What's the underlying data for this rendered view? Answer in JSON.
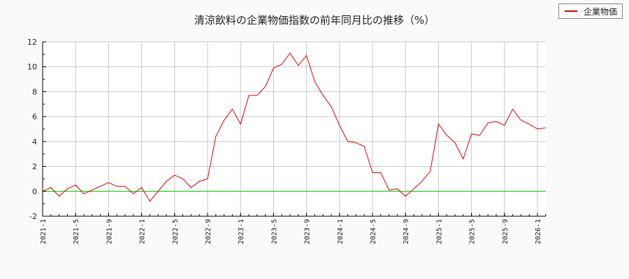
{
  "title": "清涼飲料の企業物価指数の前年同月比の推移（%）",
  "legend": {
    "label": "企業物価",
    "color": "#dd0000"
  },
  "colors": {
    "series": "#dd0000",
    "zero_line": "#00cc00",
    "grid": "#c8c8c8",
    "axis": "#000000",
    "plot_bg": "#ffffff",
    "page_bg": "#fafafa"
  },
  "chart_data": {
    "type": "line",
    "title": "清涼飲料の企業物価指数の前年同月比の推移（%）",
    "xlabel": "",
    "ylabel": "",
    "ylim": [
      -2,
      12
    ],
    "yticks": [
      -2,
      0,
      2,
      4,
      6,
      8,
      10,
      12
    ],
    "xtick_labels": [
      "2021-1",
      "2021-5",
      "2021-9",
      "2022-1",
      "2022-5",
      "2022-9",
      "2023-1",
      "2023-5",
      "2023-9",
      "2024-1",
      "2024-5",
      "2024-9",
      "2025-1",
      "2025-5",
      "2025-9",
      "2026-1"
    ],
    "grid": true,
    "legend_position": "top-right",
    "x": [
      "2021-1",
      "2021-2",
      "2021-3",
      "2021-4",
      "2021-5",
      "2021-6",
      "2021-7",
      "2021-8",
      "2021-9",
      "2021-10",
      "2021-11",
      "2021-12",
      "2022-1",
      "2022-2",
      "2022-3",
      "2022-4",
      "2022-5",
      "2022-6",
      "2022-7",
      "2022-8",
      "2022-9",
      "2022-10",
      "2022-11",
      "2022-12",
      "2023-1",
      "2023-2",
      "2023-3",
      "2023-4",
      "2023-5",
      "2023-6",
      "2023-7",
      "2023-8",
      "2023-9",
      "2023-10",
      "2023-11",
      "2023-12",
      "2024-1",
      "2024-2",
      "2024-3",
      "2024-4",
      "2024-5",
      "2024-6",
      "2024-7",
      "2024-8",
      "2024-9",
      "2024-10",
      "2024-11",
      "2024-12",
      "2025-1",
      "2025-2",
      "2025-3",
      "2025-4",
      "2025-5",
      "2025-6",
      "2025-7",
      "2025-8",
      "2025-9",
      "2025-10",
      "2025-11",
      "2025-12",
      "2026-1",
      "2026-2"
    ],
    "series": [
      {
        "name": "企業物価",
        "color": "#dd0000",
        "values": [
          0.0,
          0.3,
          -0.4,
          0.2,
          0.5,
          -0.2,
          0.1,
          0.4,
          0.7,
          0.4,
          0.4,
          -0.2,
          0.3,
          -0.8,
          0.0,
          0.8,
          1.3,
          1.0,
          0.3,
          0.8,
          1.0,
          4.4,
          5.7,
          6.6,
          5.4,
          7.7,
          7.7,
          8.4,
          9.9,
          10.2,
          11.1,
          10.1,
          10.9,
          8.8,
          7.7,
          6.8,
          5.3,
          4.0,
          3.9,
          3.6,
          1.5,
          1.5,
          0.1,
          0.2,
          -0.4,
          0.2,
          0.8,
          1.6,
          5.4,
          4.5,
          3.9,
          2.6,
          4.6,
          4.5,
          5.5,
          5.6,
          5.3,
          6.6,
          5.7,
          5.4,
          5.0,
          5.1
        ]
      }
    ],
    "reference_line": {
      "y": 0,
      "color": "#00cc00"
    }
  }
}
